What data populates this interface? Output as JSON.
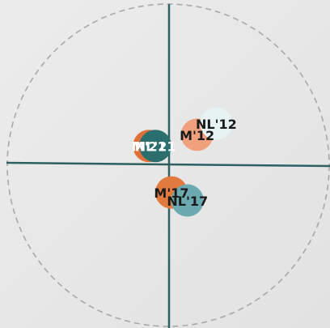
{
  "chart_data": {
    "type": "scatter",
    "xlim": [
      -1,
      1
    ],
    "ylim": [
      -1,
      1
    ],
    "points": [
      {
        "label": "M'21",
        "x": -0.12,
        "y": 0.12,
        "color": "#e0703a",
        "label_color": "#ffffff"
      },
      {
        "label": "NL'21",
        "x": -0.08,
        "y": 0.12,
        "color": "#2a6e6e",
        "label_color": "#ffffff"
      },
      {
        "label": "M'12",
        "x": 0.18,
        "y": 0.19,
        "color": "#f0a07c",
        "label_color": "#1a1a1a"
      },
      {
        "label": "NL'12",
        "x": 0.3,
        "y": 0.26,
        "color": "#e6f3f2",
        "label_color": "#1a1a1a"
      },
      {
        "label": "M'17",
        "x": 0.02,
        "y": -0.17,
        "color": "#e07a3f",
        "label_color": "#1a1a1a"
      },
      {
        "label": "NL'17",
        "x": 0.12,
        "y": -0.22,
        "color": "#6aaab0",
        "label_color": "#1a1a1a"
      }
    ]
  }
}
